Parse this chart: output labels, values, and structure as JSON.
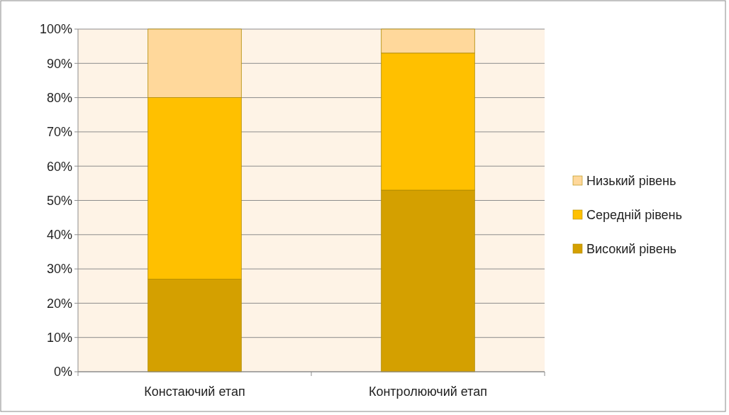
{
  "chart_data": {
    "type": "bar",
    "stacked": true,
    "categories": [
      "Констаючий етап",
      "Контролюючий етап"
    ],
    "series": [
      {
        "name": "Високий рівень",
        "color": "#d4a000",
        "values": [
          27,
          53
        ]
      },
      {
        "name": "Середній рівень",
        "color": "#ffc000",
        "values": [
          53,
          40
        ]
      },
      {
        "name": "Низький рівень",
        "color": "#ffd89b",
        "values": [
          20,
          7
        ]
      }
    ],
    "ylim": [
      0,
      100
    ],
    "yticks": [
      {
        "value": 0,
        "label": "0%"
      },
      {
        "value": 10,
        "label": "10%"
      },
      {
        "value": 20,
        "label": "20%"
      },
      {
        "value": 30,
        "label": "30%"
      },
      {
        "value": 40,
        "label": "40%"
      },
      {
        "value": 50,
        "label": "50%"
      },
      {
        "value": 60,
        "label": "60%"
      },
      {
        "value": 70,
        "label": "70%"
      },
      {
        "value": 80,
        "label": "80%"
      },
      {
        "value": 90,
        "label": "90%"
      },
      {
        "value": 100,
        "label": "100%"
      }
    ],
    "grid": "y",
    "legend": "right"
  }
}
